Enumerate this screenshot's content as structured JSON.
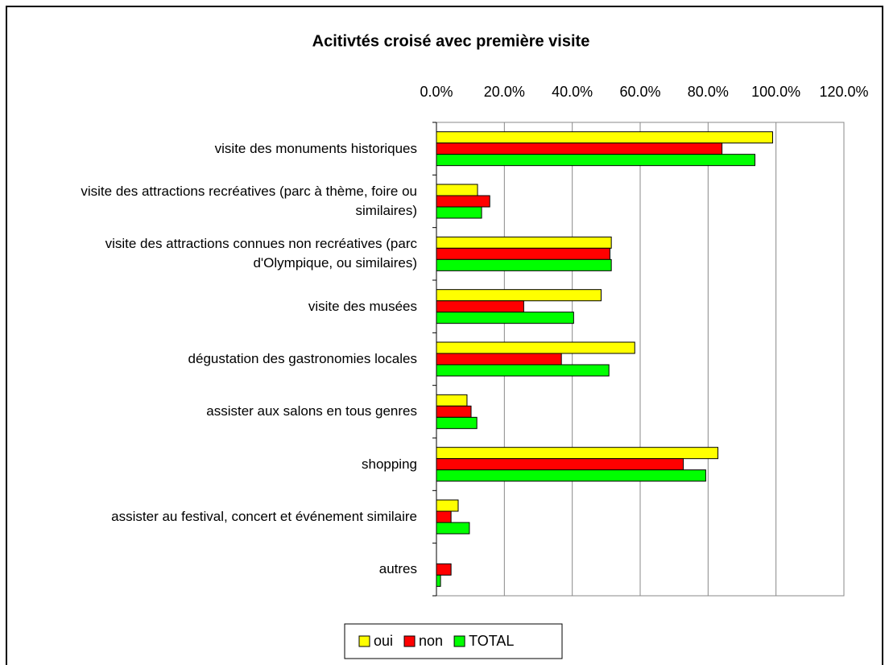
{
  "chart_data": {
    "type": "bar",
    "orientation": "horizontal",
    "title": "Acitivtés croisé avec première visite",
    "categories": [
      "visite des monuments historiques",
      "visite des attractions recréatives (parc à thème, foire ou similaires)",
      "visite des attractions connues non recréatives (parc d'Olympique, ou similaires)",
      "visite des musées",
      "dégustation des gastronomies locales",
      "assister aux salons en tous genres",
      "shopping",
      "assister au festival, concert et événement similaire",
      "autres"
    ],
    "series": [
      {
        "name": "oui",
        "color": "#ffff00",
        "values": [
          99.0,
          12.1,
          51.5,
          48.5,
          58.4,
          9.0,
          82.9,
          6.4,
          0
        ]
      },
      {
        "name": "non",
        "color": "#ff0000",
        "values": [
          84.1,
          15.7,
          51.1,
          25.7,
          36.8,
          10.2,
          72.7,
          4.3,
          4.3
        ]
      },
      {
        "name": "TOTAL",
        "color": "#00ff00",
        "values": [
          93.8,
          13.3,
          51.5,
          40.4,
          50.8,
          11.9,
          79.3,
          9.7,
          1.2
        ]
      }
    ],
    "xlim": [
      0,
      120
    ],
    "xticks": [
      {
        "value": 0,
        "label": "0.0%"
      },
      {
        "value": 20,
        "label": "20.0%"
      },
      {
        "value": 40,
        "label": "40.0%"
      },
      {
        "value": 60,
        "label": "60.0%"
      },
      {
        "value": 80,
        "label": "80.0%"
      },
      {
        "value": 100,
        "label": "100.0%"
      },
      {
        "value": 120,
        "label": "120.0%"
      }
    ],
    "grid": true,
    "legend": "bottom"
  }
}
